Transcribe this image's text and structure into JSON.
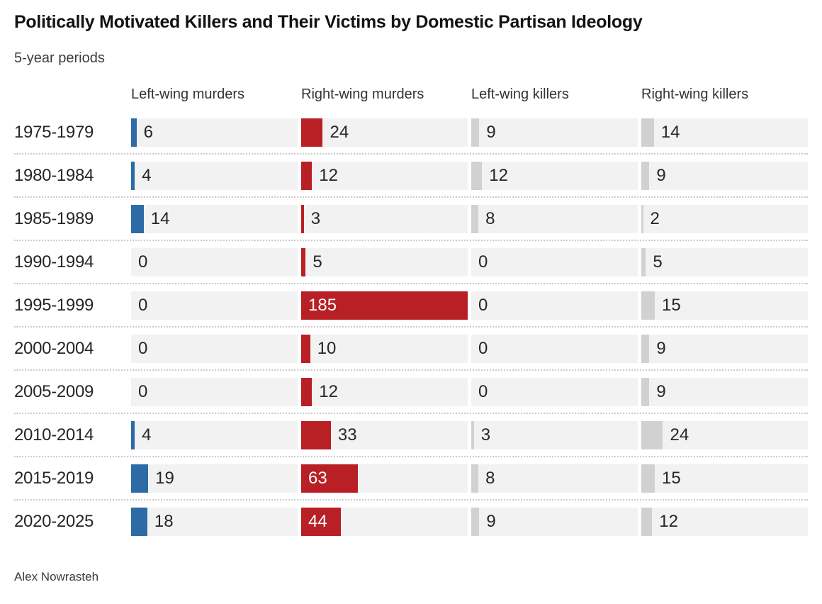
{
  "title": "Politically Motivated Killers and Their Victims by Domestic Partisan Ideology",
  "subtitle": "5-year periods",
  "footer": "Alex Nowrasteh",
  "colors": {
    "left_wing_bar": "#2d6ba7",
    "right_wing_bar": "#b82025",
    "killers_bar": "#d1d1d1",
    "track_background": "#f2f2f2",
    "inside_label_text": "#ffffff",
    "separator_dots": "#cbcbcb"
  },
  "chart_data": {
    "type": "bar",
    "orientation": "horizontal",
    "title": "Politically Motivated Killers and Their Victims by Domestic Partisan Ideology",
    "subtitle": "5-year periods",
    "source": "Alex Nowrasteh",
    "grid": false,
    "legend_position": "column-headers",
    "xlim": [
      0,
      185
    ],
    "categories": [
      "1975-1979",
      "1980-1984",
      "1985-1989",
      "1990-1994",
      "1995-1999",
      "2000-2004",
      "2005-2009",
      "2010-2014",
      "2015-2019",
      "2020-2025"
    ],
    "series": [
      {
        "name": "Left-wing murders",
        "color": "#2d6ba7",
        "values": [
          6,
          4,
          14,
          0,
          0,
          0,
          0,
          4,
          19,
          18
        ]
      },
      {
        "name": "Right-wing murders",
        "color": "#b82025",
        "values": [
          24,
          12,
          3,
          5,
          185,
          10,
          12,
          33,
          63,
          44
        ]
      },
      {
        "name": "Left-wing killers",
        "color": "#d1d1d1",
        "values": [
          9,
          12,
          8,
          0,
          0,
          0,
          0,
          3,
          8,
          9
        ]
      },
      {
        "name": "Right-wing killers",
        "color": "#d1d1d1",
        "values": [
          14,
          9,
          2,
          5,
          15,
          9,
          9,
          24,
          15,
          12
        ]
      }
    ]
  }
}
